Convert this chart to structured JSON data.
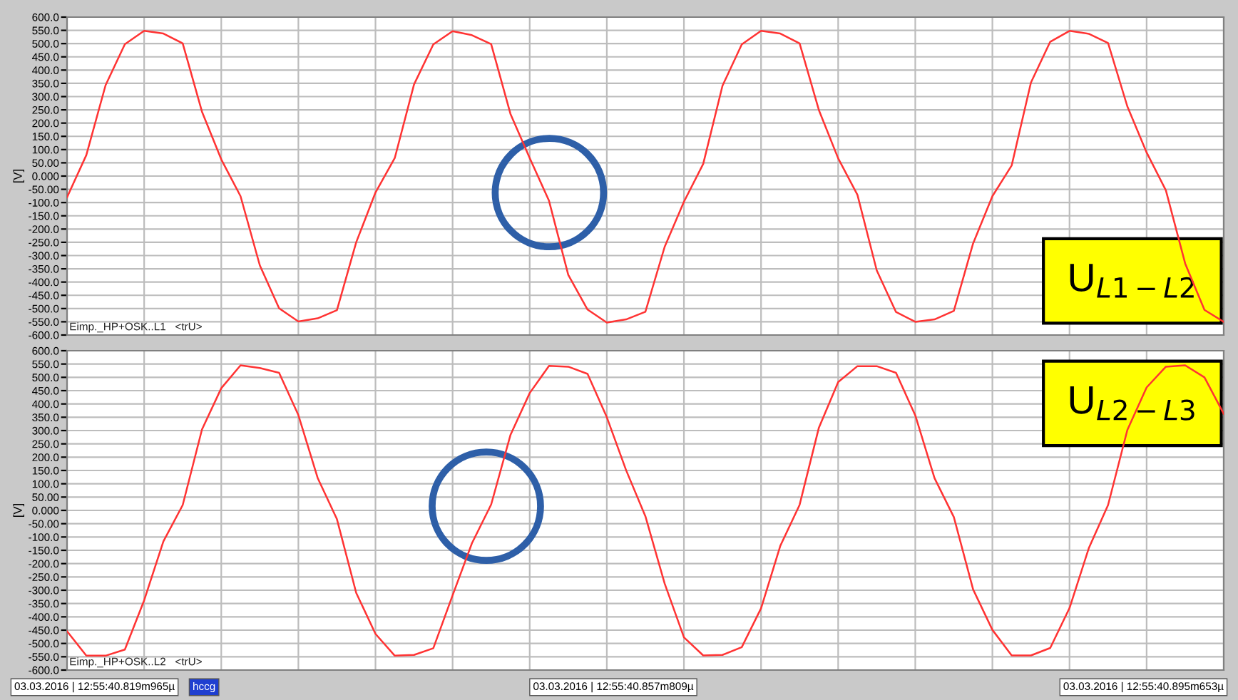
{
  "chart_data": [
    {
      "type": "line",
      "ylabel": "[V]",
      "ylim": [
        -600,
        600
      ],
      "categories": [
        null,
        null,
        null,
        null,
        null,
        null,
        null,
        null,
        null,
        null,
        null,
        null,
        null,
        null,
        null,
        null,
        null,
        null,
        null,
        null,
        null,
        null,
        null,
        null,
        null,
        null,
        null,
        null,
        null,
        null,
        null,
        null,
        null,
        null,
        null,
        null,
        null,
        null,
        null,
        null,
        null,
        null,
        null,
        null,
        null,
        null,
        null,
        null,
        null,
        null,
        null,
        null,
        null,
        null,
        null,
        null,
        null,
        null,
        null,
        null,
        null
      ],
      "yticks": [
        {
          "value": 600,
          "label": "600.0"
        },
        {
          "value": 550,
          "label": "550.0"
        },
        {
          "value": 500,
          "label": "500.0"
        },
        {
          "value": 450,
          "label": "450.0"
        },
        {
          "value": 400,
          "label": "400.0"
        },
        {
          "value": 350,
          "label": "350.0"
        },
        {
          "value": 300,
          "label": "300.0"
        },
        {
          "value": 250,
          "label": "250.0"
        },
        {
          "value": 200,
          "label": "200.0"
        },
        {
          "value": 150,
          "label": "150.0"
        },
        {
          "value": 100,
          "label": "100.0"
        },
        {
          "value": 50,
          "label": "50.00"
        },
        {
          "value": 0,
          "label": "0.000"
        },
        {
          "value": -50,
          "label": "-50.00"
        },
        {
          "value": -100,
          "label": "-100.0"
        },
        {
          "value": -150,
          "label": "-150.0"
        },
        {
          "value": -200,
          "label": "-200.0"
        },
        {
          "value": -250,
          "label": "-250.0"
        },
        {
          "value": -300,
          "label": "-300.0"
        },
        {
          "value": -350,
          "label": "-350.0"
        },
        {
          "value": -400,
          "label": "-400.0"
        },
        {
          "value": -450,
          "label": "-450.0"
        },
        {
          "value": -500,
          "label": "-500.0"
        },
        {
          "value": -550,
          "label": "-550.0"
        },
        {
          "value": -600,
          "label": "-600.0"
        }
      ],
      "tick_labels": "y",
      "grid": true,
      "annotations": [
        "U$_{L1−L2}$",
        "Eimp._HP+OSK..L1   <trU>"
      ],
      "series": [
        {
          "color": "#ff3333",
          "values": [
            -80,
            79,
            343,
            498,
            548,
            538,
            501,
            243,
            63,
            -76,
            -337,
            -499,
            -549,
            -537,
            -506,
            -250,
            -62,
            68,
            346,
            497,
            547,
            532,
            498,
            235,
            68,
            -93,
            -373,
            -504,
            -553,
            -541,
            -512,
            -267,
            -97,
            46,
            341,
            497,
            548,
            538,
            501,
            249,
            67,
            -71,
            -356,
            -513,
            -550,
            -541,
            -509,
            -254,
            -76,
            40,
            353,
            507,
            548,
            537,
            502,
            263,
            89,
            -54,
            -330,
            -505,
            -550
          ]
        }
      ]
    },
    {
      "type": "line",
      "ylabel": "[V]",
      "ylim": [
        -600,
        600
      ],
      "categories": [
        null,
        null,
        null,
        null,
        null,
        null,
        null,
        null,
        null,
        null,
        null,
        null,
        null,
        null,
        null,
        null,
        null,
        null,
        null,
        null,
        null,
        null,
        null,
        null,
        null,
        null,
        null,
        null,
        null,
        null,
        null,
        null,
        null,
        null,
        null,
        null,
        null,
        null,
        null,
        null,
        null,
        null,
        null,
        null,
        null,
        null,
        null,
        null,
        null,
        null,
        null,
        null,
        null,
        null,
        null,
        null,
        null,
        null,
        null,
        null,
        null
      ],
      "yticks": [
        {
          "value": 600,
          "label": "600.0"
        },
        {
          "value": 550,
          "label": "550.0"
        },
        {
          "value": 500,
          "label": "500.0"
        },
        {
          "value": 450,
          "label": "450.0"
        },
        {
          "value": 400,
          "label": "400.0"
        },
        {
          "value": 350,
          "label": "350.0"
        },
        {
          "value": 300,
          "label": "300.0"
        },
        {
          "value": 250,
          "label": "250.0"
        },
        {
          "value": 200,
          "label": "200.0"
        },
        {
          "value": 150,
          "label": "150.0"
        },
        {
          "value": 100,
          "label": "100.0"
        },
        {
          "value": 50,
          "label": "50.00"
        },
        {
          "value": 0,
          "label": "0.000"
        },
        {
          "value": -50,
          "label": "-50.00"
        },
        {
          "value": -100,
          "label": "-100.0"
        },
        {
          "value": -150,
          "label": "-150.0"
        },
        {
          "value": -200,
          "label": "-200.0"
        },
        {
          "value": -250,
          "label": "-250.0"
        },
        {
          "value": -300,
          "label": "-300.0"
        },
        {
          "value": -350,
          "label": "-350.0"
        },
        {
          "value": -400,
          "label": "-400.0"
        },
        {
          "value": -450,
          "label": "-450.0"
        },
        {
          "value": -500,
          "label": "-500.0"
        },
        {
          "value": -550,
          "label": "-550.0"
        },
        {
          "value": -600,
          "label": "-600.0"
        }
      ],
      "tick_labels": "y",
      "grid": true,
      "annotations": [
        "U$_{L2−L3}$",
        "Eimp._HP+OSK..L2   <trU>",
        "03.03.2016 | 12:55:40.819m965µ",
        "hccg",
        "03.03.2016 | 12:55:40.857m809µ",
        "03.03.2016 | 12:55:40.895m653µ"
      ],
      "series": [
        {
          "color": "#ff3333",
          "values": [
            -454,
            -546,
            -546,
            -523,
            -338,
            -116,
            20,
            304,
            459,
            545,
            535,
            517,
            358,
            122,
            -33,
            -310,
            -464,
            -546,
            -543,
            -518,
            -319,
            -124,
            22,
            283,
            441,
            543,
            540,
            513,
            350,
            151,
            -22,
            -275,
            -477,
            -545,
            -543,
            -514,
            -368,
            -133,
            21,
            311,
            482,
            542,
            542,
            517,
            357,
            121,
            -25,
            -297,
            -449,
            -545,
            -545,
            -517,
            -367,
            -142,
            20,
            302,
            462,
            540,
            545,
            500,
            363
          ]
        }
      ]
    }
  ]
}
